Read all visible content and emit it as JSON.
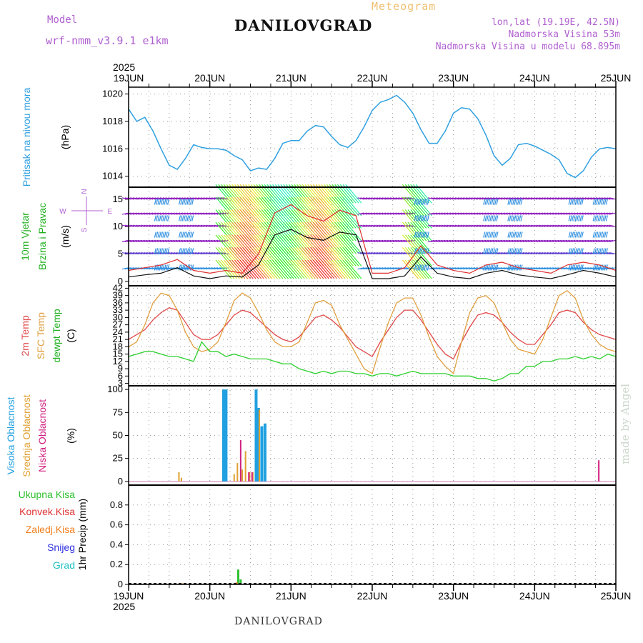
{
  "header": {
    "model_label": "Model",
    "model_name": "wrf-nmm_v3.9.1 e1km",
    "title": "DANILOVGRAD",
    "subtitle": "Meteogram",
    "lonlat": "lon,lat (19.19E, 42.5N)",
    "altitude": "Nadmorska Visina 53m",
    "model_altitude": "Nadmorska Visina u modelu 68.895m",
    "bottom_title": "DANILOVGRAD",
    "watermark": "made by Angel"
  },
  "colors": {
    "pressure": "#30a0e0",
    "temp2m": "#e04848",
    "sfc_temp": "#e0a040",
    "dewpt": "#30d030",
    "high_cloud": "#20a0e0",
    "mid_cloud": "#e0a030",
    "low_cloud": "#d02080",
    "total_precip": "#30c030",
    "conv_precip": "#e03030",
    "frz_precip": "#f08020",
    "snow": "#3030e0",
    "hail": "#20c0c0",
    "wind_label": "#20c020",
    "wind_speed_line": "#111111",
    "wind_gust": "#e03030"
  },
  "chart_data": [
    {
      "type": "line",
      "panel": "pressure",
      "ylabel": "(hPa)",
      "side_label": "Pritisak na nivou mora",
      "ylim": [
        1013.2,
        1020.5
      ],
      "yticks": [
        1014,
        1016,
        1018,
        1020
      ],
      "x_day_fractions": [
        0.0,
        0.1,
        0.2,
        0.3,
        0.4,
        0.5,
        0.6,
        0.7,
        0.8,
        0.9,
        1.0,
        1.1,
        1.2,
        1.3,
        1.4,
        1.5,
        1.6,
        1.7,
        1.8,
        1.9,
        2.0,
        2.1,
        2.2,
        2.3,
        2.4,
        2.5,
        2.6,
        2.7,
        2.8,
        2.9,
        3.0,
        3.1,
        3.2,
        3.3,
        3.4,
        3.5,
        3.6,
        3.7,
        3.8,
        3.9,
        4.0,
        4.1,
        4.2,
        4.3,
        4.4,
        4.5,
        4.6,
        4.7,
        4.8,
        4.9,
        5.0,
        5.1,
        5.2,
        5.3,
        5.4,
        5.5,
        5.6,
        5.7,
        5.8,
        5.9,
        6.0
      ],
      "series": [
        {
          "values": [
            1018.9,
            1018.0,
            1018.3,
            1017.3,
            1016.0,
            1014.8,
            1014.5,
            1015.3,
            1016.3,
            1016.1,
            1016.0,
            1016.0,
            1015.9,
            1015.5,
            1015.2,
            1014.4,
            1014.6,
            1014.5,
            1015.3,
            1016.4,
            1016.6,
            1016.6,
            1017.3,
            1017.7,
            1017.6,
            1016.9,
            1016.3,
            1016.1,
            1016.6,
            1017.6,
            1018.8,
            1019.4,
            1019.6,
            1019.9,
            1019.4,
            1018.6,
            1017.4,
            1016.4,
            1016.4,
            1017.3,
            1018.6,
            1019.0,
            1018.9,
            1018.2,
            1017.0,
            1015.5,
            1014.8,
            1015.3,
            1016.3,
            1016.4,
            1016.2,
            1015.9,
            1015.6,
            1015.2,
            1014.2,
            1013.9,
            1014.4,
            1015.4,
            1016.0,
            1016.1,
            1016.0
          ]
        }
      ]
    },
    {
      "type": "line",
      "panel": "wind",
      "ylabel": "(m/s)",
      "side_label_1": "10m Vjetar",
      "side_label_2": "Brzina i Pravac",
      "compass": {
        "n": "N",
        "s": "S",
        "w": "W",
        "e": "E"
      },
      "ylim": [
        -0.8,
        17.2
      ],
      "yticks": [
        0,
        5,
        10,
        15
      ],
      "x_day_fractions": [
        0.0,
        0.2,
        0.4,
        0.6,
        0.8,
        1.0,
        1.2,
        1.4,
        1.6,
        1.8,
        2.0,
        2.2,
        2.4,
        2.6,
        2.8,
        3.0,
        3.2,
        3.4,
        3.6,
        3.8,
        4.0,
        4.2,
        4.4,
        4.6,
        4.8,
        5.0,
        5.2,
        5.4,
        5.6,
        5.8,
        6.0
      ],
      "series": [
        {
          "name": "speed",
          "values": [
            0.8,
            1.2,
            1.5,
            2.5,
            1.0,
            0.5,
            1.0,
            0.8,
            3.0,
            8.5,
            9.5,
            8.0,
            7.5,
            9.0,
            8.5,
            0.5,
            0.5,
            1.0,
            4.5,
            1.5,
            0.8,
            0.5,
            1.5,
            2.0,
            1.2,
            0.8,
            0.5,
            1.2,
            2.0,
            1.5,
            0.8
          ]
        },
        {
          "name": "gust",
          "values": [
            2.0,
            2.5,
            3.0,
            4.0,
            2.0,
            1.5,
            2.0,
            1.5,
            5.0,
            12.5,
            14.0,
            12.0,
            11.0,
            13.0,
            12.0,
            1.5,
            1.5,
            2.5,
            6.5,
            3.0,
            2.0,
            1.5,
            3.0,
            3.5,
            2.5,
            2.0,
            1.5,
            3.0,
            3.5,
            3.0,
            2.0
          ]
        }
      ]
    },
    {
      "type": "line",
      "panel": "temperature",
      "ylabel": "(C)",
      "side_label_1": "2m Temp",
      "side_label_2": "SFC Temp",
      "side_label_3": "dewpt Temp",
      "ylim": [
        2,
        43
      ],
      "yticks": [
        3,
        6,
        9,
        12,
        15,
        18,
        21,
        24,
        27,
        30,
        33,
        36,
        39,
        42
      ],
      "x_day_fractions": [
        0.0,
        0.1,
        0.2,
        0.3,
        0.4,
        0.5,
        0.6,
        0.7,
        0.8,
        0.9,
        1.0,
        1.1,
        1.2,
        1.3,
        1.4,
        1.5,
        1.6,
        1.7,
        1.8,
        1.9,
        2.0,
        2.1,
        2.2,
        2.3,
        2.4,
        2.5,
        2.6,
        2.7,
        2.8,
        2.9,
        3.0,
        3.1,
        3.2,
        3.3,
        3.4,
        3.5,
        3.6,
        3.7,
        3.8,
        3.9,
        4.0,
        4.1,
        4.2,
        4.3,
        4.4,
        4.5,
        4.6,
        4.7,
        4.8,
        4.9,
        5.0,
        5.1,
        5.2,
        5.3,
        5.4,
        5.5,
        5.6,
        5.7,
        5.8,
        5.9,
        6.0
      ],
      "series": [
        {
          "name": "2m Temp",
          "values": [
            21,
            23,
            25,
            29,
            32,
            34,
            33,
            28,
            23,
            21,
            21,
            23,
            27,
            31,
            33,
            32,
            29,
            26,
            23,
            21,
            20,
            22,
            26,
            30,
            31,
            29,
            26,
            22,
            18,
            16,
            14,
            20,
            25,
            30,
            33,
            33,
            29,
            24,
            19,
            15,
            13,
            20,
            26,
            31,
            32,
            31,
            28,
            24,
            21,
            19,
            19,
            23,
            27,
            32,
            33,
            32,
            28,
            25,
            23,
            22,
            21
          ]
        },
        {
          "name": "SFC Temp",
          "values": [
            18,
            20,
            27,
            36,
            40,
            39,
            33,
            24,
            18,
            16,
            17,
            20,
            28,
            37,
            40,
            38,
            32,
            25,
            20,
            18,
            18,
            20,
            28,
            36,
            37,
            35,
            27,
            21,
            15,
            9,
            7,
            18,
            28,
            36,
            38,
            38,
            31,
            22,
            14,
            10,
            7,
            20,
            32,
            38,
            39,
            36,
            28,
            21,
            17,
            16,
            15,
            21,
            30,
            39,
            41,
            38,
            29,
            23,
            19,
            17,
            16
          ]
        },
        {
          "name": "dewpt Temp",
          "values": [
            14,
            15,
            16,
            16,
            15,
            14,
            14,
            13,
            12,
            20,
            16,
            16,
            14,
            15,
            14,
            13,
            13,
            13,
            12,
            11,
            11,
            9,
            8,
            7,
            8,
            7,
            8,
            8,
            7,
            7,
            6,
            7,
            7,
            6,
            7,
            8,
            7,
            7,
            7,
            7,
            6,
            6,
            6,
            5,
            5,
            4,
            5,
            7,
            7,
            10,
            10,
            12,
            12,
            13,
            13,
            14,
            13,
            14,
            13,
            15,
            14
          ]
        }
      ]
    },
    {
      "type": "bar",
      "panel": "clouds",
      "ylabel": "(%)",
      "side_label_1": "Visoka Oblacnost",
      "side_label_2": "Srednja Oblacnost",
      "side_label_3": "Niska Oblacnost",
      "ylim": [
        -4,
        104
      ],
      "yticks": [
        0,
        25,
        50,
        75,
        100
      ],
      "series": [
        {
          "name": "Visoka Oblacnost",
          "x_day": [
            1.17,
            1.2,
            1.57,
            1.6,
            1.64,
            1.68
          ],
          "values": [
            100,
            100,
            100,
            80,
            60,
            63
          ]
        },
        {
          "name": "Srednja Oblacnost",
          "x_day": [
            0.62,
            0.65,
            1.3,
            1.34,
            1.4,
            1.44,
            1.49,
            1.53,
            1.61
          ],
          "values": [
            10,
            4,
            8,
            20,
            13,
            33,
            10,
            10,
            78
          ]
        },
        {
          "name": "Niska Oblacnost",
          "x_day": [
            1.38,
            1.48,
            1.52,
            5.79
          ],
          "values": [
            45,
            10,
            10,
            23
          ]
        }
      ]
    },
    {
      "type": "bar",
      "panel": "precip",
      "ylabel": "1hr Precip (mm)",
      "legend": [
        "Ukupna Kisa",
        "Konvek.Kisa",
        "Zaledj.Kisa",
        "Snijeg",
        "Grad"
      ],
      "ylim": [
        0,
        1.0
      ],
      "yticks": [
        0,
        0.2,
        0.4,
        0.6,
        0.8
      ],
      "series": [
        {
          "name": "Ukupna Kisa",
          "x_day": [
            1.35,
            1.38
          ],
          "values": [
            0.15,
            0.05
          ]
        },
        {
          "name": "Zaledj.Kisa",
          "x_day": [
            0.66,
            1.33
          ],
          "values": [
            0.01,
            0.02
          ]
        }
      ]
    }
  ],
  "time_axis": {
    "year": "2025",
    "days": [
      "19JUN",
      "20JUN",
      "21JUN",
      "22JUN",
      "23JUN",
      "24JUN",
      "25JUN"
    ]
  }
}
